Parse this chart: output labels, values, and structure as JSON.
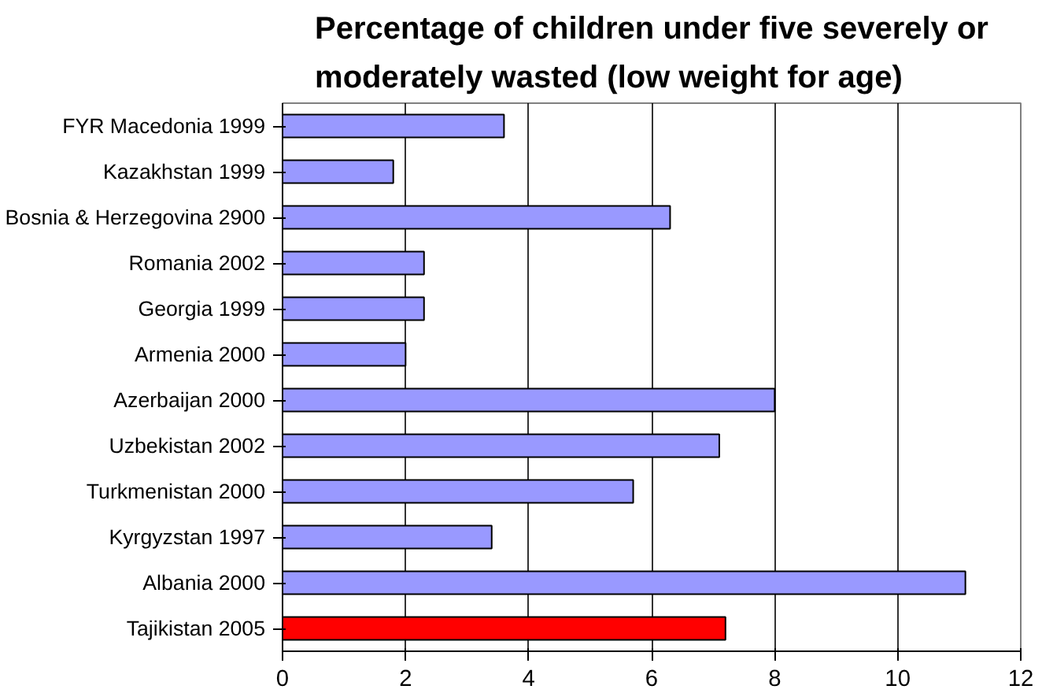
{
  "chart_data": {
    "type": "bar",
    "orientation": "horizontal",
    "title": "Percentage of children under five severely or\nmoderately wasted (low weight for age)",
    "categories": [
      "FYR Macedonia 1999",
      "Kazakhstan 1999",
      "Bosnia & Herzegovina 2900",
      "Romania 2002",
      "Georgia 1999",
      "Armenia 2000",
      "Azerbaijan 2000",
      "Uzbekistan 2002",
      "Turkmenistan 2000",
      "Kyrgyzstan 1997",
      "Albania 2000",
      "Tajikistan 2005"
    ],
    "values": [
      3.6,
      1.8,
      6.3,
      2.3,
      2.3,
      2.0,
      8.0,
      7.1,
      5.7,
      3.4,
      11.1,
      7.2
    ],
    "colors": [
      "#9999ff",
      "#9999ff",
      "#9999ff",
      "#9999ff",
      "#9999ff",
      "#9999ff",
      "#9999ff",
      "#9999ff",
      "#9999ff",
      "#9999ff",
      "#9999ff",
      "#ff0000"
    ],
    "xlim": [
      0,
      12
    ],
    "xticks": [
      0,
      2,
      4,
      6,
      8,
      10,
      12
    ],
    "grid": "x"
  }
}
